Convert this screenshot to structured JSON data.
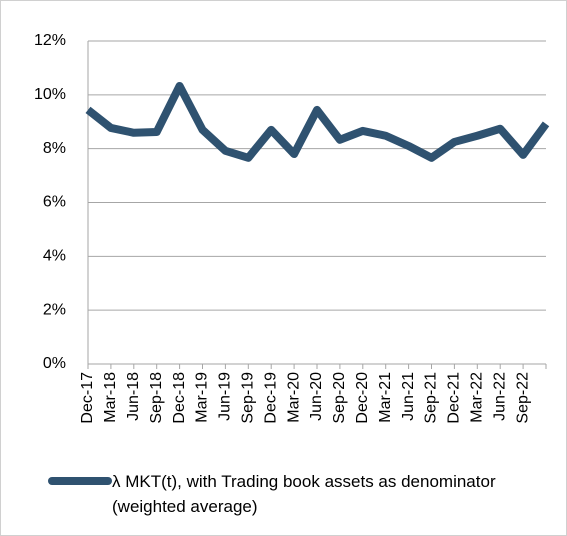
{
  "chart_data": {
    "type": "line",
    "categories": [
      "Dec-17",
      "Mar-18",
      "Jun-18",
      "Sep-18",
      "Dec-18",
      "Mar-19",
      "Jun-19",
      "Sep-19",
      "Dec-19",
      "Mar-20",
      "Jun-20",
      "Sep-20",
      "Dec-20",
      "Mar-21",
      "Jun-21",
      "Sep-21",
      "Dec-21",
      "Mar-22",
      "Jun-22",
      "Sep-22",
      null
    ],
    "series": [
      {
        "name": "λ MKT(t), with Trading book assets as denominator (weighted average)",
        "color": "#2f5270",
        "values": [
          9.44,
          8.77,
          8.59,
          8.62,
          10.33,
          8.7,
          7.92,
          7.66,
          8.7,
          7.8,
          9.44,
          8.33,
          8.66,
          8.48,
          8.1,
          7.66,
          8.25,
          8.48,
          8.74,
          7.77,
          8.92
        ]
      }
    ],
    "ylim": [
      0,
      12
    ],
    "yticks": [
      {
        "value": 0,
        "label": "0%"
      },
      {
        "value": 2,
        "label": "2%"
      },
      {
        "value": 4,
        "label": "4%"
      },
      {
        "value": 6,
        "label": "6%"
      },
      {
        "value": 8,
        "label": "8%"
      },
      {
        "value": 10,
        "label": "10%"
      },
      {
        "value": 12,
        "label": "12%"
      }
    ],
    "grid": true
  }
}
